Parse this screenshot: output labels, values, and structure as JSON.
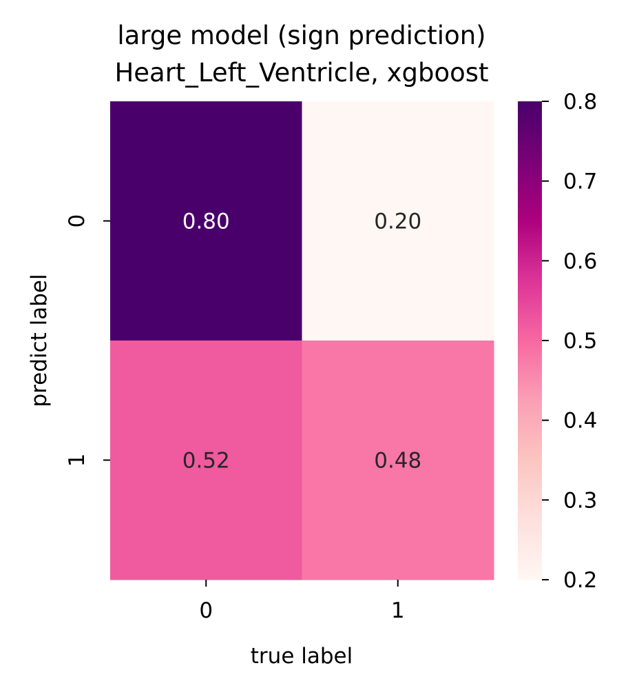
{
  "chart_data": {
    "type": "heatmap",
    "title_lines": [
      "large model (sign prediction)",
      "Heart_Left_Ventricle, xgboost"
    ],
    "xlabel": "true label",
    "ylabel": "predict label",
    "x_categories": [
      "0",
      "1"
    ],
    "y_categories": [
      "0",
      "1"
    ],
    "values": [
      [
        0.8,
        0.2
      ],
      [
        0.52,
        0.48
      ]
    ],
    "value_labels": [
      [
        "0.80",
        "0.20"
      ],
      [
        "0.52",
        "0.48"
      ]
    ],
    "colorbar": {
      "range": [
        0.2,
        0.8
      ],
      "ticks": [
        0.2,
        0.3,
        0.4,
        0.5,
        0.6,
        0.7,
        0.8
      ],
      "tick_labels": [
        "0.2",
        "0.3",
        "0.4",
        "0.5",
        "0.6",
        "0.7",
        "0.8"
      ]
    },
    "colormap": [
      "#fff7f3",
      "#fde0dd",
      "#fcc5c0",
      "#fa9fb5",
      "#f768a1",
      "#dd3497",
      "#ae017e",
      "#7a0177",
      "#49006a"
    ]
  }
}
